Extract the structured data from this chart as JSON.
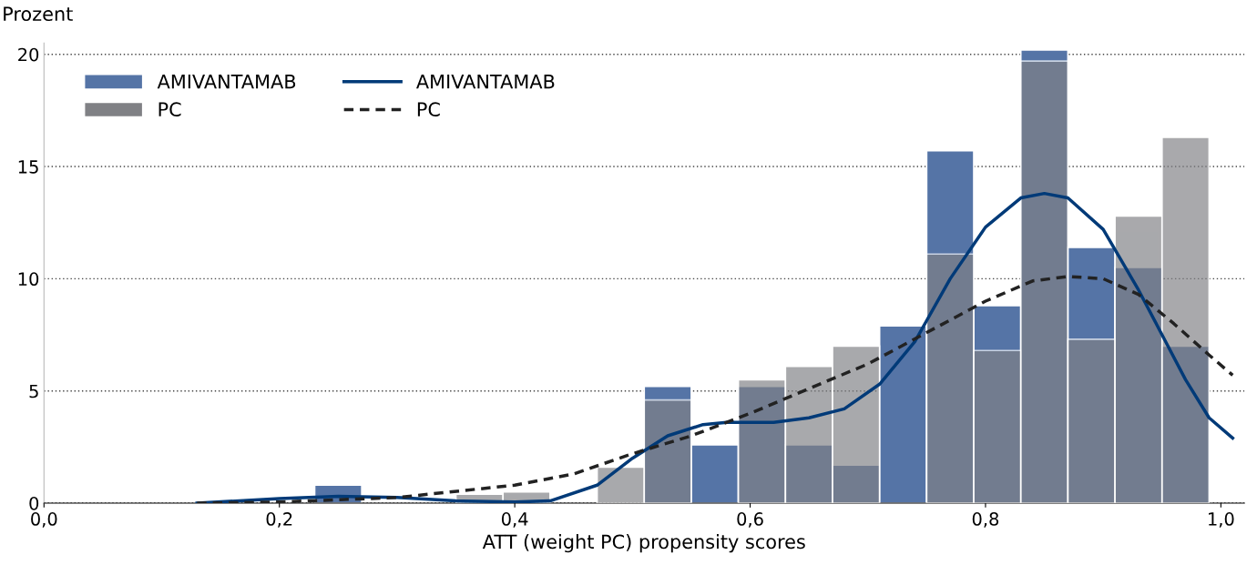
{
  "chart_data": {
    "type": "histogram",
    "xlabel": "ATT (weight PC) propensity scores",
    "ylabel": "Prozent",
    "bins": [
      0.23,
      0.27,
      0.31,
      0.35,
      0.39,
      0.43,
      0.47,
      0.51,
      0.55,
      0.59,
      0.63,
      0.67,
      0.71,
      0.75,
      0.79,
      0.83,
      0.87,
      0.91,
      0.95,
      0.99
    ],
    "series": [
      {
        "name": "AMIVANTAMAB",
        "color": "#5574a6",
        "values": [
          0.8,
          0,
          0,
          0,
          0,
          0,
          0,
          5.2,
          2.6,
          5.2,
          2.6,
          1.7,
          7.9,
          15.7,
          8.8,
          20.2,
          11.4,
          10.5,
          7.0
        ]
      },
      {
        "name": "PC",
        "color": "#808185",
        "values": [
          0,
          0,
          0,
          0.4,
          0.5,
          0,
          1.6,
          4.6,
          0,
          5.5,
          6.1,
          7.0,
          0,
          11.1,
          6.8,
          19.7,
          7.3,
          12.8,
          16.3
        ]
      },
      {
        "name": "AMIVANTAMAB",
        "type": "line",
        "color": "#003a78",
        "line_style": "solid",
        "x": [
          0.13,
          0.2,
          0.25,
          0.3,
          0.35,
          0.4,
          0.43,
          0.47,
          0.5,
          0.53,
          0.56,
          0.58,
          0.62,
          0.65,
          0.68,
          0.71,
          0.74,
          0.77,
          0.8,
          0.83,
          0.85,
          0.87,
          0.9,
          0.93,
          0.95,
          0.97,
          0.99,
          1.01
        ],
        "values": [
          0,
          0.2,
          0.3,
          0.25,
          0.1,
          0.05,
          0.1,
          0.8,
          2.0,
          3.0,
          3.5,
          3.6,
          3.6,
          3.8,
          4.2,
          5.3,
          7.2,
          10.0,
          12.3,
          13.6,
          13.8,
          13.6,
          12.2,
          9.5,
          7.5,
          5.5,
          3.8,
          2.9
        ]
      },
      {
        "name": "PC",
        "type": "line",
        "color": "#222222",
        "line_style": "dashed",
        "x": [
          0.13,
          0.2,
          0.3,
          0.4,
          0.45,
          0.5,
          0.55,
          0.6,
          0.65,
          0.7,
          0.75,
          0.8,
          0.84,
          0.87,
          0.9,
          0.93,
          0.96,
          0.99,
          1.01
        ],
        "values": [
          0,
          0.05,
          0.25,
          0.8,
          1.3,
          2.2,
          3.0,
          4.0,
          5.1,
          6.2,
          7.6,
          9.0,
          9.9,
          10.1,
          10.0,
          9.3,
          8.0,
          6.6,
          5.7
        ]
      }
    ],
    "xlim": [
      0,
      1.02
    ],
    "xticks": [
      {
        "value": 0,
        "label": "0,0"
      },
      {
        "value": 0.2,
        "label": "0,2"
      },
      {
        "value": 0.4,
        "label": "0,4"
      },
      {
        "value": 0.6,
        "label": "0,6"
      },
      {
        "value": 0.8,
        "label": "0,8"
      },
      {
        "value": 1.0,
        "label": "1,0"
      }
    ],
    "ylim": [
      0,
      20.5
    ],
    "yticks": [
      0,
      5,
      10,
      15,
      20
    ],
    "grid": "y",
    "legend": "top left"
  }
}
